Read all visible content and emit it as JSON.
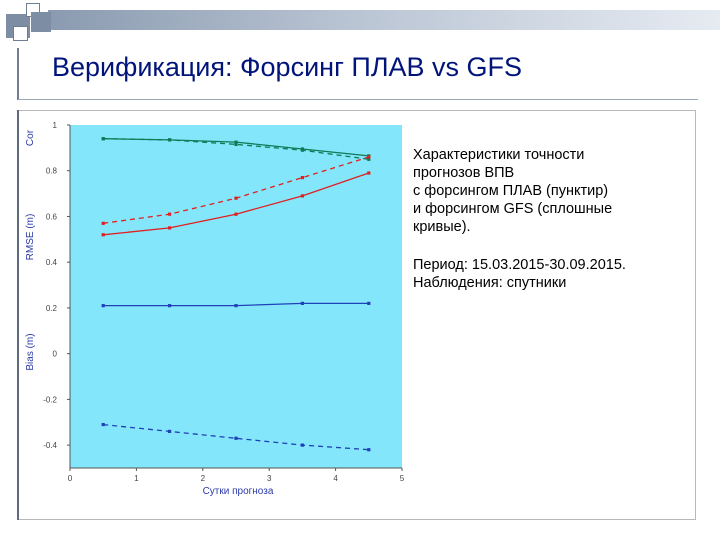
{
  "title": "Верификация: Форсинг ПЛАВ vs GFS",
  "description": {
    "line1": "Характеристики точности",
    "line2": "прогнозов ВПВ",
    "line3": "с форсингом ПЛАВ (пунктир)",
    "line4": "и форсингом GFS (сплошные",
    "line5": "кривые).",
    "line6": "Период: 15.03.2015-30.09.2015.",
    "line7": "Наблюдения: спутники"
  },
  "colors": {
    "plot_bg": "#84e6fb",
    "cor": "#0f7a55",
    "rmse": "#e02020",
    "bias": "#2040b8"
  },
  "chart_data": {
    "type": "line",
    "xlabel": "Сутки прогноза",
    "xlim": [
      0,
      5
    ],
    "ylim": [
      -0.5,
      1
    ],
    "x_ticks": [
      "0",
      "1",
      "2",
      "3",
      "4",
      "5"
    ],
    "y_ticks": [
      "1",
      "0.8",
      "0.6",
      "0.4",
      "0.2",
      "0",
      "-0.2",
      "-0.4"
    ],
    "y_tick_values": [
      1,
      0.8,
      0.6,
      0.4,
      0.2,
      0,
      -0.2,
      -0.4
    ],
    "axis_group_labels": [
      "Cor",
      "RMSE (m)",
      "Bias (m)"
    ],
    "x": [
      0.5,
      1.5,
      2.5,
      3.5,
      4.5
    ],
    "series": [
      {
        "group": "Cor",
        "style": "solid",
        "values": [
          0.94,
          0.935,
          0.925,
          0.895,
          0.865
        ]
      },
      {
        "group": "Cor",
        "style": "dashed",
        "values": [
          0.94,
          0.935,
          0.915,
          0.89,
          0.85
        ]
      },
      {
        "group": "RMSE",
        "style": "solid",
        "values": [
          0.52,
          0.55,
          0.61,
          0.69,
          0.79
        ]
      },
      {
        "group": "RMSE",
        "style": "dashed",
        "values": [
          0.57,
          0.61,
          0.68,
          0.77,
          0.86
        ]
      },
      {
        "group": "Bias",
        "style": "solid",
        "values": [
          0.21,
          0.21,
          0.21,
          0.22,
          0.22
        ]
      },
      {
        "group": "Bias",
        "style": "dashed",
        "values": [
          -0.31,
          -0.34,
          -0.37,
          -0.4,
          -0.42
        ]
      }
    ]
  }
}
